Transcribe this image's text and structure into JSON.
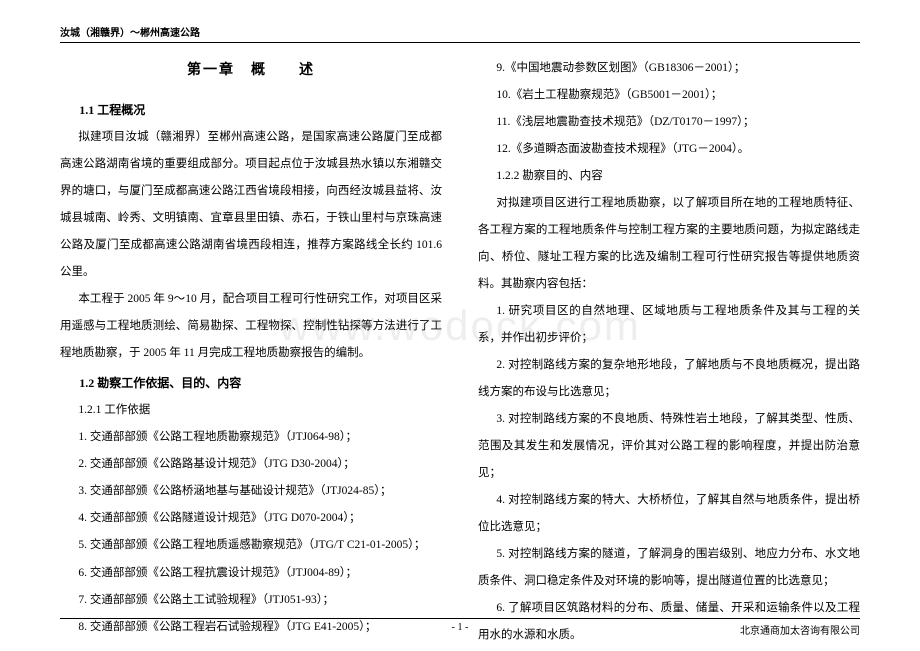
{
  "header": {
    "title": "汝城（湘赣界）～郴州高速公路"
  },
  "watermark": "www.wodock.com",
  "left": {
    "chapter": "第一章　概　　述",
    "s1_title": "1.1 工程概况",
    "p1": "拟建项目汝城（赣湘界）至郴州高速公路，是国家高速公路厦门至成都高速公路湖南省境的重要组成部分。项目起点位于汝城县热水镇以东湘赣交界的塘口，与厦门至成都高速公路江西省境段相接，向西经汝城县益将、汝城县城南、岭秀、文明镇南、宜章县里田镇、赤石，于铁山里村与京珠高速公路及厦门至成都高速公路湖南省境西段相连，推荐方案路线全长约 101.6 公里。",
    "p2": "本工程于 2005 年 9～10 月，配合项目工程可行性研究工作，对项目区采用遥感与工程地质测绘、简易勘探、工程物探、控制性钻探等方法进行了工程地质勘察，于 2005 年 11 月完成工程地质勘察报告的编制。",
    "s2_title": "1.2 勘察工作依据、目的、内容",
    "sub1": "1.2.1 工作依据",
    "items": [
      "1. 交通部部颁《公路工程地质勘察规范》（JTJ064-98）；",
      "2. 交通部部颁《公路路基设计规范》（JTG D30-2004）；",
      "3. 交通部部颁《公路桥涵地基与基础设计规范》（JTJ024-85）；",
      "4. 交通部部颁《公路隧道设计规范》（JTG D070-2004）；",
      "5. 交通部部颁《公路工程地质遥感勘察规范》（JTG/T C21-01-2005）；",
      "6. 交通部部颁《公路工程抗震设计规范》（JTJ004-89）；",
      "7. 交通部部颁《公路土工试验规程》（JTJ051-93）；",
      "8. 交通部部颁《公路工程岩石试验规程》（JTG E41-2005）；"
    ]
  },
  "right": {
    "top_items": [
      "9.《中国地震动参数区划图》（GB18306－2001）；",
      "10.《岩土工程勘察规范》（GB5001－2001）；",
      "11.《浅层地震勘查技术规范》（DZ/T0170－1997）；",
      "12.《多道瞬态面波勘查技术规程》（JTG－2004）。"
    ],
    "sub2": "1.2.2 勘察目的、内容",
    "p3": "对拟建项目区进行工程地质勘察，以了解项目所在地的工程地质特征、各工程方案的工程地质条件与控制工程方案的主要地质问题，为拟定路线走向、桥位、隧址工程方案的比选及编制工程可行性研究报告等提供地质资料。其勘察内容包括：",
    "items2": [
      "1. 研究项目区的自然地理、区域地质与工程地质条件及其与工程的关系，并作出初步评价；",
      "2. 对控制路线方案的复杂地形地段，了解地质与不良地质概况，提出路线方案的布设与比选意见；",
      "3. 对控制路线方案的不良地质、特殊性岩土地段，了解其类型、性质、范围及其发生和发展情况，评价其对公路工程的影响程度，并提出防治意见；",
      "4. 对控制路线方案的特大、大桥桥位，了解其自然与地质条件，提出桥位比选意见；",
      "5. 对控制路线方案的隧道，了解洞身的围岩级别、地应力分布、水文地质条件、洞口稳定条件及对环境的影响等，提出隧道位置的比选意见；",
      "6. 了解项目区筑路材料的分布、质量、储量、开采和运输条件以及工程用水的水源和水质。"
    ]
  },
  "footer": {
    "page": "- 1 -",
    "company": "北京通商加太咨询有限公司"
  }
}
